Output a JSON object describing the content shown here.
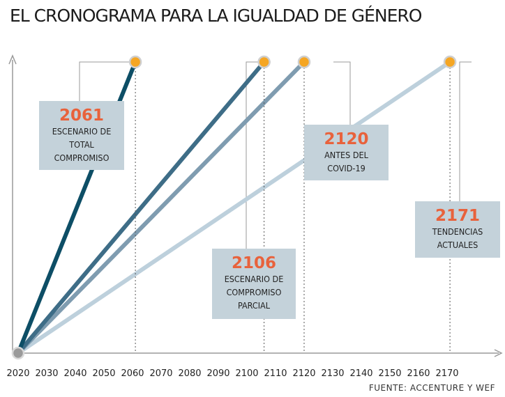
{
  "title": "EL CRONOGRAMA PARA LA IGUALDAD DE GÉNERO",
  "source": "FUENTE: ACCENTURE Y WEF",
  "colors": {
    "marker": "#f5a623",
    "origin": "#9a9a9a",
    "box": "#c4d2da",
    "year_text": "#e8623c"
  },
  "chart_data": {
    "type": "line",
    "x_ticks": [
      "2020",
      "2030",
      "2040",
      "2050",
      "2060",
      "2070",
      "2080",
      "2090",
      "2100",
      "2110",
      "2120",
      "2130",
      "2140",
      "2150",
      "2160",
      "2170"
    ],
    "series": [
      {
        "name": "ESCENARIO DE TOTAL COMPROMISO",
        "start": 2020,
        "end": 2061,
        "color": "#0d4e66"
      },
      {
        "name": "ESCENARIO DE COMPROMISO PARCIAL",
        "start": 2020,
        "end": 2106,
        "color": "#3e6d87"
      },
      {
        "name": "ANTES DEL COVID-19",
        "start": 2020,
        "end": 2120,
        "color": "#7f9cb0"
      },
      {
        "name": "TENDENCIAS ACTUALES",
        "start": 2020,
        "end": 2171,
        "color": "#bdd0dc"
      }
    ],
    "annotations": [
      {
        "year": "2061",
        "text": "ESCENARIO DE\nTOTAL\nCOMPROMISO"
      },
      {
        "year": "2106",
        "text": "ESCENARIO DE\nCOMPROMISO\nPARCIAL"
      },
      {
        "year": "2120",
        "text": "ANTES DEL\nCOVID-19"
      },
      {
        "year": "2171",
        "text": "TENDENCIAS\nACTUALES"
      }
    ]
  }
}
